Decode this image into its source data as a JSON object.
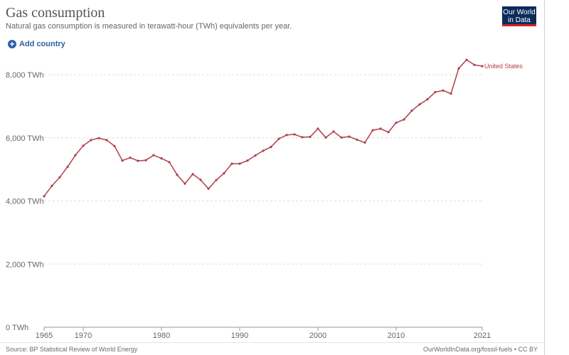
{
  "header": {
    "title": "Gas consumption",
    "subtitle": "Natural gas consumption is measured in terawatt-hour (TWh) equivalents per year."
  },
  "logo": {
    "line1": "Our World",
    "line2": "in Data"
  },
  "controls": {
    "add_country_label": "Add country",
    "add_icon": "plus-circle-icon"
  },
  "footer": {
    "source": "Source: BP Statistical Review of World Energy",
    "url": "OurWorldInData.org/fossil-fuels • CC BY"
  },
  "colors": {
    "series": "#b13e4a",
    "logo_bg": "#0b2c5b",
    "logo_accent": "#ce261e",
    "link": "#2c5fa8"
  },
  "chart_data": {
    "type": "line",
    "title": "Gas consumption",
    "subtitle": "Natural gas consumption is measured in terawatt-hour (TWh) equivalents per year.",
    "xlabel": "",
    "ylabel": "",
    "xlim": [
      1965,
      2021
    ],
    "ylim": [
      0,
      8500
    ],
    "grid": "horizontal-dashed",
    "legend": "inline-right",
    "y_ticks": [
      {
        "value": 0,
        "label": "0 TWh"
      },
      {
        "value": 2000,
        "label": "2,000 TWh"
      },
      {
        "value": 4000,
        "label": "4,000 TWh"
      },
      {
        "value": 6000,
        "label": "6,000 TWh"
      },
      {
        "value": 8000,
        "label": "8,000 TWh"
      }
    ],
    "x_ticks": [
      {
        "value": 1965,
        "label": "1965"
      },
      {
        "value": 1970,
        "label": "1970"
      },
      {
        "value": 1980,
        "label": "1980"
      },
      {
        "value": 1990,
        "label": "1990"
      },
      {
        "value": 2000,
        "label": "2000"
      },
      {
        "value": 2010,
        "label": "2010"
      },
      {
        "value": 2021,
        "label": "2021"
      }
    ],
    "series": [
      {
        "name": "United States",
        "x": [
          1965,
          1966,
          1967,
          1968,
          1969,
          1970,
          1971,
          1972,
          1973,
          1974,
          1975,
          1976,
          1977,
          1978,
          1979,
          1980,
          1981,
          1982,
          1983,
          1984,
          1985,
          1986,
          1987,
          1988,
          1989,
          1990,
          1991,
          1992,
          1993,
          1994,
          1995,
          1996,
          1997,
          1998,
          1999,
          2000,
          2001,
          2002,
          2003,
          2004,
          2005,
          2006,
          2007,
          2008,
          2009,
          2010,
          2011,
          2012,
          2013,
          2014,
          2015,
          2016,
          2017,
          2018,
          2019,
          2020,
          2021
        ],
        "values": [
          4150,
          4480,
          4750,
          5080,
          5450,
          5750,
          5930,
          5990,
          5930,
          5740,
          5280,
          5370,
          5270,
          5290,
          5450,
          5350,
          5230,
          4830,
          4550,
          4850,
          4670,
          4390,
          4660,
          4880,
          5180,
          5180,
          5280,
          5440,
          5590,
          5710,
          5970,
          6090,
          6110,
          6020,
          6030,
          6290,
          6010,
          6200,
          6010,
          6040,
          5940,
          5850,
          6240,
          6290,
          6180,
          6480,
          6580,
          6860,
          7060,
          7220,
          7450,
          7500,
          7400,
          8200,
          8470,
          8310,
          8270
        ]
      }
    ]
  }
}
